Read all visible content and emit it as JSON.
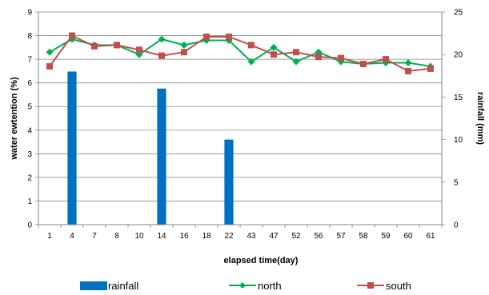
{
  "chart_data": {
    "type": "bar+line",
    "categories": [
      "1",
      "4",
      "7",
      "8",
      "10",
      "14",
      "16",
      "18",
      "22",
      "43",
      "47",
      "52",
      "56",
      "57",
      "58",
      "59",
      "60",
      "61"
    ],
    "xlabel": "elapsed time(day)",
    "ylabel_left": "water ewtention (%)",
    "ylabel_right": "rainfall (mm)",
    "ylim_left": [
      0,
      9
    ],
    "yticks_left": [
      "0",
      "1",
      "2",
      "3",
      "4",
      "5",
      "6",
      "7",
      "8",
      "9"
    ],
    "ylim_right": [
      0,
      25
    ],
    "yticks_right": [
      "0",
      "5",
      "10",
      "15",
      "20",
      "25"
    ],
    "grid": "horizontal",
    "legend_position": "bottom",
    "series": [
      {
        "name": "rainfall",
        "type": "bar",
        "axis": "right",
        "color": "#0070C0",
        "values": [
          0,
          18,
          0,
          0,
          0,
          16,
          0,
          0,
          10,
          0,
          0,
          0,
          0,
          0,
          0,
          0,
          0,
          0
        ]
      },
      {
        "name": "north",
        "type": "line",
        "axis": "left",
        "color": "#00B050",
        "marker": "diamond",
        "values": [
          7.3,
          7.85,
          7.6,
          7.6,
          7.2,
          7.85,
          7.6,
          7.8,
          7.8,
          6.9,
          7.5,
          6.9,
          7.3,
          6.9,
          6.8,
          6.85,
          6.85,
          6.7
        ]
      },
      {
        "name": "south",
        "type": "line",
        "axis": "left",
        "color": "#C0504D",
        "marker": "square",
        "values": [
          6.7,
          8.0,
          7.55,
          7.6,
          7.4,
          7.15,
          7.3,
          7.95,
          7.95,
          7.6,
          7.2,
          7.3,
          7.1,
          7.05,
          6.8,
          7.0,
          6.5,
          6.6
        ]
      }
    ]
  }
}
